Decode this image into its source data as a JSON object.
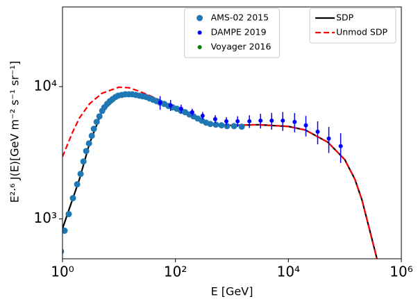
{
  "chart_data": {
    "type": "scatter",
    "xlabel": "E [GeV]",
    "ylabel": "E²·⁶ J(E)[GeV m⁻² s⁻¹ sr⁻¹]",
    "xscale": "log",
    "yscale": "log",
    "xlim": [
      1,
      1000000
    ],
    "ylim": [
      500,
      40000
    ],
    "xticks": [
      {
        "value": 1,
        "label": "10⁰"
      },
      {
        "value": 100,
        "label": "10²"
      },
      {
        "value": 10000,
        "label": "10⁴"
      },
      {
        "value": 1000000,
        "label": "10⁶"
      }
    ],
    "yticks": [
      {
        "value": 1000,
        "label": "10³"
      },
      {
        "value": 10000,
        "label": "10⁴"
      }
    ],
    "legends": [
      {
        "loc": "upper center",
        "series": [
          0,
          1,
          2
        ]
      },
      {
        "loc": "upper right",
        "series": [
          3,
          4
        ]
      }
    ],
    "series": [
      {
        "name": "AMS-02 2015",
        "color": "#1f77b4",
        "mode": "markers",
        "size": 4.5,
        "x": [
          0.94,
          1.09,
          1.29,
          1.53,
          1.82,
          2.09,
          2.35,
          2.63,
          2.94,
          3.3,
          3.59,
          4.03,
          4.51,
          5.05,
          5.51,
          6.17,
          6.91,
          7.74,
          8.67,
          9.72,
          11.2,
          12.9,
          14.9,
          17.2,
          19.8,
          22.8,
          26.3,
          30.3,
          34.9,
          40.3,
          46.4,
          53.5,
          63.4,
          75.3,
          89.3,
          106,
          126,
          149,
          177,
          209,
          248,
          294,
          349,
          414,
          520,
          653,
          820,
          1090,
          1490
        ],
        "values": [
          568,
          815,
          1088,
          1436,
          1827,
          2190,
          2720,
          3260,
          3720,
          4250,
          4800,
          5410,
          5960,
          6560,
          6970,
          7400,
          7760,
          8050,
          8340,
          8550,
          8650,
          8750,
          8750,
          8750,
          8650,
          8550,
          8450,
          8340,
          8140,
          7950,
          7760,
          7570,
          7400,
          7140,
          6970,
          6800,
          6560,
          6400,
          6160,
          5960,
          5740,
          5530,
          5340,
          5220,
          5160,
          5100,
          5030,
          5030,
          4980
        ]
      },
      {
        "name": "DAMPE 2019",
        "color": "#0000ff",
        "mode": "errorbar",
        "size": 3,
        "x": [
          53.5,
          82,
          126,
          198,
          303,
          506,
          797,
          1260,
          2040,
          3210,
          5060,
          7960,
          12900,
          20400,
          33000,
          52000,
          84300
        ],
        "values": [
          7570,
          7230,
          6800,
          6400,
          6020,
          5680,
          5470,
          5470,
          5470,
          5530,
          5530,
          5530,
          5410,
          5100,
          4560,
          4050,
          3550
        ],
        "errors": [
          900,
          700,
          500,
          400,
          400,
          400,
          400,
          500,
          600,
          700,
          800,
          900,
          900,
          900,
          900,
          900,
          900
        ]
      },
      {
        "name": "Voyager 2016",
        "color": "#008000",
        "mode": "markers",
        "size": 3,
        "x": [],
        "values": []
      },
      {
        "name": "SDP",
        "color": "#000000",
        "mode": "lines",
        "dash": "solid",
        "x": [
          1,
          1.5,
          2,
          3,
          5,
          10,
          20,
          50,
          100,
          200,
          500,
          1000,
          3000,
          10000,
          20000,
          50000,
          100000,
          150000,
          200000,
          270000,
          370000
        ],
        "values": [
          845,
          1400,
          2000,
          3700,
          6500,
          8500,
          8700,
          7600,
          6800,
          5900,
          5150,
          5100,
          5150,
          5000,
          4700,
          3800,
          2800,
          2000,
          1400,
          850,
          500
        ]
      },
      {
        "name": "Unmod SDP",
        "color": "#ff0000",
        "mode": "lines",
        "dash": "dashed",
        "x": [
          1,
          1.5,
          2,
          3,
          5,
          10,
          15,
          20,
          30,
          50,
          100,
          200,
          500,
          1000,
          3000,
          10000,
          20000,
          50000,
          100000,
          150000,
          200000,
          270000,
          370000
        ],
        "values": [
          2950,
          4500,
          5800,
          7400,
          8900,
          9900,
          9800,
          9400,
          8800,
          8000,
          6900,
          5900,
          5150,
          5100,
          5150,
          5000,
          4700,
          3800,
          2800,
          2000,
          1400,
          850,
          500
        ]
      }
    ]
  }
}
